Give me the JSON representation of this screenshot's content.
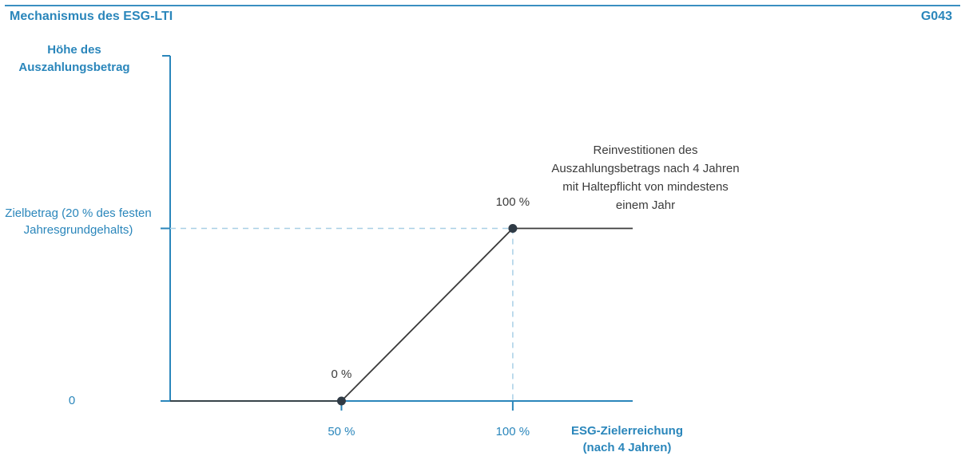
{
  "header": {
    "title": "Mechanismus des ESG-LTI",
    "code": "G043"
  },
  "chart_data": {
    "type": "line",
    "title": "Mechanismus des ESG-LTI",
    "ylabel": "Höhe des Auszahlungsbetrag",
    "xlabel": "ESG-Zielerreichung (nach 4 Jahren)",
    "x_ticks": [
      {
        "value": 50,
        "label": "50 %"
      },
      {
        "value": 100,
        "label": "100 %"
      }
    ],
    "y_ticks": [
      {
        "value": 0,
        "label": "0"
      },
      {
        "value": 100,
        "label": "Zielbetrag (20 % des festen Jahresgrundgehalts)"
      }
    ],
    "xlim": [
      0,
      135
    ],
    "ylim": [
      0,
      200
    ],
    "series": [
      {
        "points": [
          {
            "x": 0,
            "y": 0
          },
          {
            "x": 50,
            "y": 0
          },
          {
            "x": 100,
            "y": 100
          },
          {
            "x": 135,
            "y": 100
          }
        ],
        "color": "#3b3b3b"
      }
    ],
    "markers": [
      {
        "x": 50,
        "y": 0,
        "label": "0 %"
      },
      {
        "x": 100,
        "y": 100,
        "label": "100 %"
      }
    ],
    "annotation": "Reinvestitionen des Auszahlungsbetrags nach 4 Jahren mit Haltepflicht von mindestens einem Jahr",
    "grid": false,
    "colors": {
      "axis": "#2a86bb",
      "line": "#3b3b3b",
      "guide": "#a9cfe6"
    }
  }
}
